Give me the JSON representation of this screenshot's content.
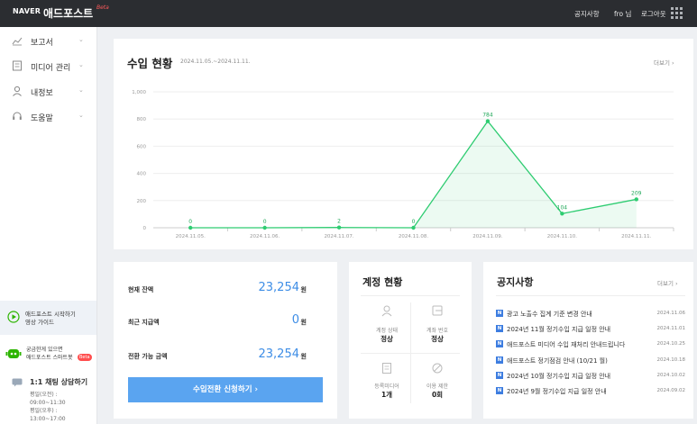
{
  "topbar": {
    "brand": "NAVER",
    "product": "애드포스트",
    "beta": "Beta",
    "links": [
      "공지사항",
      "fro 님",
      "로그아웃"
    ],
    "apps_icon": "apps-grid-icon"
  },
  "sidebar": {
    "items": [
      {
        "label": "보고서",
        "icon": "chart-line-icon"
      },
      {
        "label": "미디어 관리",
        "icon": "media-doc-icon"
      },
      {
        "label": "내정보",
        "icon": "person-icon"
      },
      {
        "label": "도움말",
        "icon": "headset-icon"
      }
    ],
    "guide": {
      "line1": "애드포스트 시작하기",
      "line2": "영상 가이드"
    },
    "smarttalk": {
      "line1": "궁금한게 있으면",
      "line2": "애드포스트 스마트봇",
      "badge": "Beta"
    },
    "chat": {
      "title": "1:1 채팅 상담하기",
      "lines": [
        "평일(오전) :",
        "09:00~11:30",
        "평일(오후) :",
        "13:00~17:00"
      ]
    }
  },
  "revenue": {
    "title": "수입 현황",
    "period": "2024.11.05.~2024.11.11.",
    "more": "더보기"
  },
  "chart_data": {
    "type": "area",
    "categories": [
      "2024.11.05.",
      "2024.11.06.",
      "2024.11.07.",
      "2024.11.08.",
      "2024.11.09.",
      "2024.11.10.",
      "2024.11.11."
    ],
    "values": [
      0,
      0,
      2,
      0,
      784,
      104,
      209
    ],
    "y_ticks": [
      "0",
      "200",
      "400",
      "600",
      "800",
      "1,000"
    ],
    "ylim": [
      0,
      1000
    ],
    "grid": true,
    "line_color": "#2ecc71"
  },
  "balance": {
    "rows": [
      {
        "label": "현재 잔액",
        "value": "23,254",
        "unit": "원"
      },
      {
        "label": "최근 지급액",
        "value": "0",
        "unit": "원"
      },
      {
        "label": "전환 가능 금액",
        "value": "23,254",
        "unit": "원"
      }
    ],
    "button": "수입전환 신청하기  ›"
  },
  "account": {
    "title": "계정 현황",
    "cells": [
      {
        "label": "계정 상태",
        "value": "정상",
        "icon": "person-outline-icon"
      },
      {
        "label": "계좌 번호",
        "value": "정상",
        "icon": "wallet-icon"
      },
      {
        "label": "등록미디어",
        "value": "1개",
        "icon": "document-icon"
      },
      {
        "label": "이용 제한",
        "value": "0회",
        "icon": "ban-icon"
      }
    ]
  },
  "notices": {
    "title": "공지사항",
    "more": "더보기",
    "items": [
      {
        "text": "광고 노출수 집계 기준 변경 안내",
        "date": "2024.11.06"
      },
      {
        "text": "2024년 11월 정기수입 지급 일정 안내",
        "date": "2024.11.01"
      },
      {
        "text": "애드포스트 미디어 수입 재처리 안내드립니다",
        "date": "2024.10.25"
      },
      {
        "text": "애드포스트 정기점검 안내 (10/21 월)",
        "date": "2024.10.18"
      },
      {
        "text": "2024년 10월 정기수입 지급 일정 안내",
        "date": "2024.10.02"
      },
      {
        "text": "2024년 9월 정기수입 지급 일정 안내",
        "date": "2024.09.02"
      }
    ],
    "badge": "N"
  }
}
